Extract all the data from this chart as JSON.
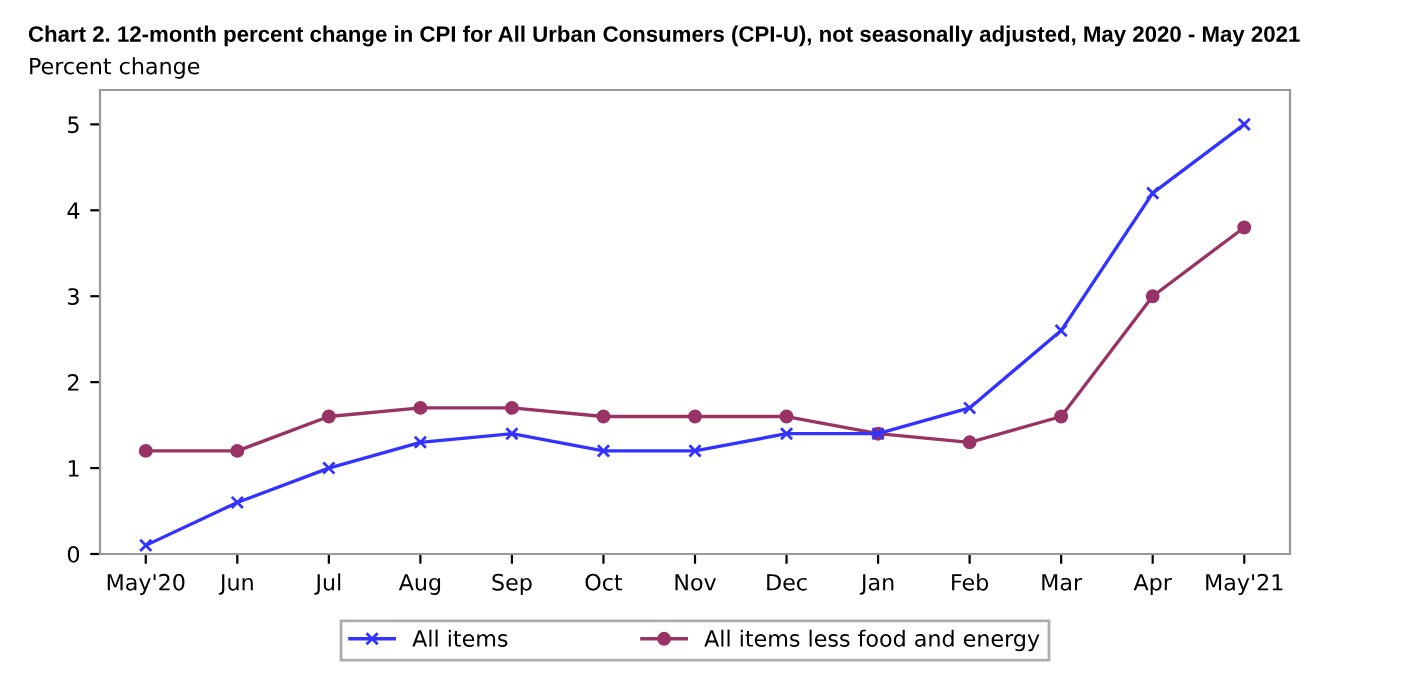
{
  "chart_data": {
    "type": "line",
    "title": "Chart 2. 12-month percent change in CPI for All Urban Consumers (CPI-U), not seasonally adjusted, May 2020 - May 2021",
    "ylabel": "Percent change",
    "categories": [
      "May'20",
      "Jun",
      "Jul",
      "Aug",
      "Sep",
      "Oct",
      "Nov",
      "Dec",
      "Jan",
      "Feb",
      "Mar",
      "Apr",
      "May'21"
    ],
    "series": [
      {
        "name": "All items",
        "color": "#3333ff",
        "marker": "cross",
        "values": [
          0.1,
          0.6,
          1.0,
          1.3,
          1.4,
          1.2,
          1.2,
          1.4,
          1.4,
          1.7,
          2.6,
          4.2,
          5.0
        ]
      },
      {
        "name": "All items less food and energy",
        "color": "#993366",
        "marker": "circle",
        "values": [
          1.2,
          1.2,
          1.6,
          1.7,
          1.7,
          1.6,
          1.6,
          1.6,
          1.4,
          1.3,
          1.6,
          3.0,
          3.8
        ]
      }
    ],
    "ylim": [
      0,
      5.4
    ],
    "yticks": [
      0,
      1,
      2,
      3,
      4,
      5
    ],
    "grid": false,
    "legend": "bottom",
    "line_style": "solid"
  }
}
